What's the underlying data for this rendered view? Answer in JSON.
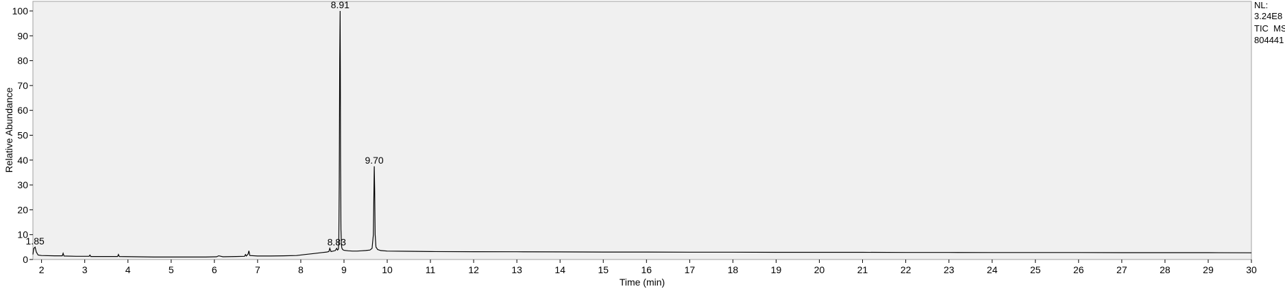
{
  "chart_data": {
    "type": "line",
    "xlabel": "Time (min)",
    "ylabel": "Relative Abundance",
    "xlim": [
      1.8,
      30
    ],
    "ylim": [
      0,
      100
    ],
    "xticks": [
      2,
      3,
      4,
      5,
      6,
      7,
      8,
      9,
      10,
      11,
      12,
      13,
      14,
      15,
      16,
      17,
      18,
      19,
      20,
      21,
      22,
      23,
      24,
      25,
      26,
      27,
      28,
      29,
      30
    ],
    "yticks": [
      0,
      10,
      20,
      30,
      40,
      50,
      60,
      70,
      80,
      90,
      100
    ],
    "grid": false,
    "legend": [
      "NL:",
      "3.24E8",
      "TIC  MS",
      "804441"
    ],
    "peak_labels": [
      {
        "label": "1.85",
        "x": 1.85,
        "y": 5
      },
      {
        "label": "8.83",
        "x": 8.83,
        "y": 4.5
      },
      {
        "label": "8.91",
        "x": 8.91,
        "y": 100
      },
      {
        "label": "9.70",
        "x": 9.7,
        "y": 37.5
      }
    ],
    "series": [
      {
        "x": [
          1.8,
          1.82,
          1.85,
          1.88,
          1.92,
          2.0,
          2.3,
          2.48,
          2.5,
          2.52,
          2.8,
          3.1,
          3.12,
          3.14,
          3.5,
          3.76,
          3.78,
          3.8,
          4.2,
          4.6,
          5.0,
          5.4,
          5.8,
          6.05,
          6.1,
          6.2,
          6.5,
          6.7,
          6.72,
          6.74,
          6.78,
          6.8,
          6.82,
          7.0,
          7.3,
          7.6,
          7.9,
          8.1,
          8.3,
          8.5,
          8.6,
          8.65,
          8.67,
          8.7,
          8.75,
          8.8,
          8.83,
          8.85,
          8.87,
          8.88,
          8.89,
          8.9,
          8.91,
          8.915,
          8.92,
          8.93,
          8.94,
          8.95,
          8.97,
          9.0,
          9.1,
          9.2,
          9.3,
          9.4,
          9.5,
          9.6,
          9.65,
          9.68,
          9.69,
          9.7,
          9.71,
          9.72,
          9.74,
          9.78,
          9.85,
          10.0,
          10.5,
          11.0,
          12.0,
          13.0,
          14.0,
          15.0,
          16.0,
          17.0,
          18.0,
          19.0,
          20.0,
          21.0,
          22.0,
          23.0,
          24.0,
          25.0,
          26.0,
          27.0,
          28.0,
          29.0,
          30.0
        ],
        "y": [
          2.0,
          4.5,
          5.0,
          3.0,
          1.8,
          1.6,
          1.5,
          1.5,
          2.5,
          1.4,
          1.3,
          1.3,
          1.8,
          1.2,
          1.2,
          1.2,
          2.0,
          1.2,
          1.1,
          1.0,
          1.0,
          1.0,
          1.0,
          1.1,
          1.5,
          1.1,
          1.2,
          1.3,
          2.0,
          1.4,
          2.2,
          3.5,
          1.6,
          1.4,
          1.4,
          1.5,
          1.6,
          2.0,
          2.4,
          2.8,
          3.0,
          3.2,
          4.5,
          3.2,
          3.4,
          3.6,
          4.5,
          3.8,
          4.2,
          8.0,
          30.0,
          80.0,
          100.0,
          76.0,
          40.0,
          12.0,
          6.0,
          4.6,
          4.0,
          3.7,
          3.5,
          3.4,
          3.4,
          3.5,
          3.6,
          3.8,
          4.5,
          10.0,
          25.0,
          37.5,
          28.0,
          10.0,
          5.0,
          4.0,
          3.6,
          3.4,
          3.3,
          3.2,
          3.15,
          3.1,
          3.05,
          3.0,
          3.0,
          2.95,
          2.95,
          2.9,
          2.9,
          2.9,
          2.85,
          2.85,
          2.8,
          2.8,
          2.8,
          2.75,
          2.75,
          2.75,
          2.7
        ]
      }
    ]
  }
}
